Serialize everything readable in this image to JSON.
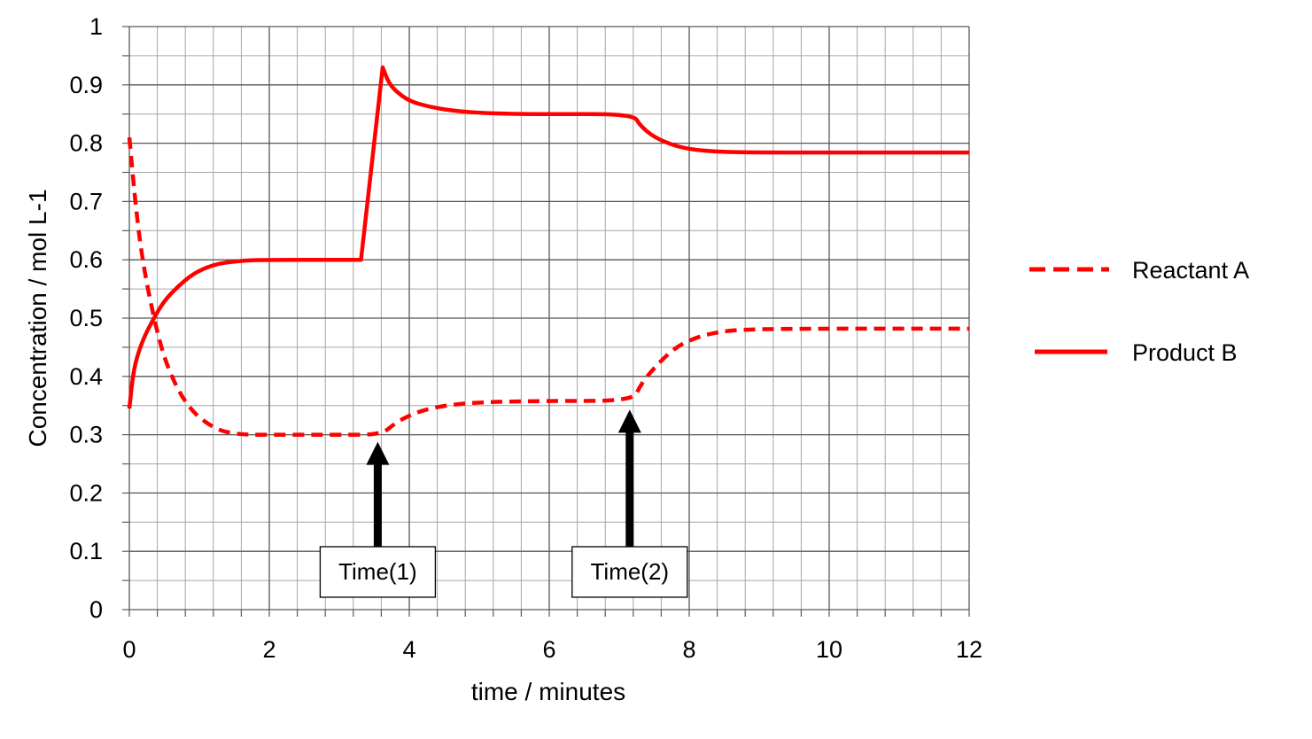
{
  "chart_data": {
    "type": "line",
    "title": "",
    "xlabel": "time / minutes",
    "ylabel": "Concentration / mol L-1",
    "xlim": [
      0,
      12
    ],
    "ylim": [
      0,
      1
    ],
    "x_ticks": [
      0,
      2,
      4,
      6,
      8,
      10,
      12
    ],
    "y_ticks": [
      0,
      0.1,
      0.2,
      0.3,
      0.4,
      0.5,
      0.6,
      0.7,
      0.8,
      0.9,
      1
    ],
    "x_tick_labels": [
      "0",
      "2",
      "4",
      "6",
      "8",
      "10",
      "12"
    ],
    "y_tick_labels": [
      "0",
      "0.1",
      "0.2",
      "0.3",
      "0.4",
      "0.5",
      "0.6",
      "0.7",
      "0.8",
      "0.9",
      "1"
    ],
    "grid": true,
    "minor_grid_x_step": 0.4,
    "minor_grid_y_step": 0.05,
    "legend": "right",
    "colors": {
      "series": "#ff0000",
      "grid": "#a6a6a6",
      "arrow": "#000000"
    },
    "series": [
      {
        "name": "Reactant A",
        "style": "dashed",
        "x": [
          0,
          0.1,
          0.2,
          0.35,
          0.5,
          0.7,
          0.9,
          1.1,
          1.3,
          1.5,
          1.7,
          2.0,
          2.5,
          3.0,
          3.6,
          3.8,
          4.0,
          4.2,
          4.5,
          5.0,
          6.0,
          7.2,
          7.3,
          7.5,
          7.8,
          8.1,
          8.4,
          8.8,
          10.0,
          12.0
        ],
        "values": [
          0.81,
          0.68,
          0.59,
          0.5,
          0.43,
          0.375,
          0.34,
          0.32,
          0.307,
          0.302,
          0.3,
          0.3,
          0.3,
          0.3,
          0.3,
          0.32,
          0.333,
          0.342,
          0.35,
          0.356,
          0.358,
          0.358,
          0.385,
          0.415,
          0.45,
          0.467,
          0.476,
          0.481,
          0.482,
          0.482
        ]
      },
      {
        "name": "Product B",
        "style": "solid",
        "x": [
          0,
          0.05,
          0.1,
          0.2,
          0.35,
          0.5,
          0.7,
          0.9,
          1.1,
          1.3,
          1.5,
          1.7,
          2.0,
          3.0,
          3.62,
          3.62,
          3.7,
          3.8,
          4.0,
          4.3,
          4.6,
          5.0,
          5.5,
          6.0,
          7.2,
          7.3,
          7.5,
          7.8,
          8.1,
          8.5,
          9.0,
          10.0,
          12.0
        ],
        "values": [
          0.345,
          0.4,
          0.43,
          0.465,
          0.5,
          0.53,
          0.555,
          0.575,
          0.587,
          0.594,
          0.597,
          0.599,
          0.6,
          0.6,
          0.6,
          0.93,
          0.905,
          0.89,
          0.872,
          0.862,
          0.856,
          0.852,
          0.85,
          0.85,
          0.85,
          0.83,
          0.81,
          0.795,
          0.788,
          0.785,
          0.784,
          0.784,
          0.784
        ]
      }
    ],
    "annotations": [
      {
        "label": "Time(1)",
        "x": 3.6,
        "arrow_tip_y": 0.3
      },
      {
        "label": "Time(2)",
        "x": 7.2,
        "arrow_tip_y": 0.355
      }
    ]
  }
}
